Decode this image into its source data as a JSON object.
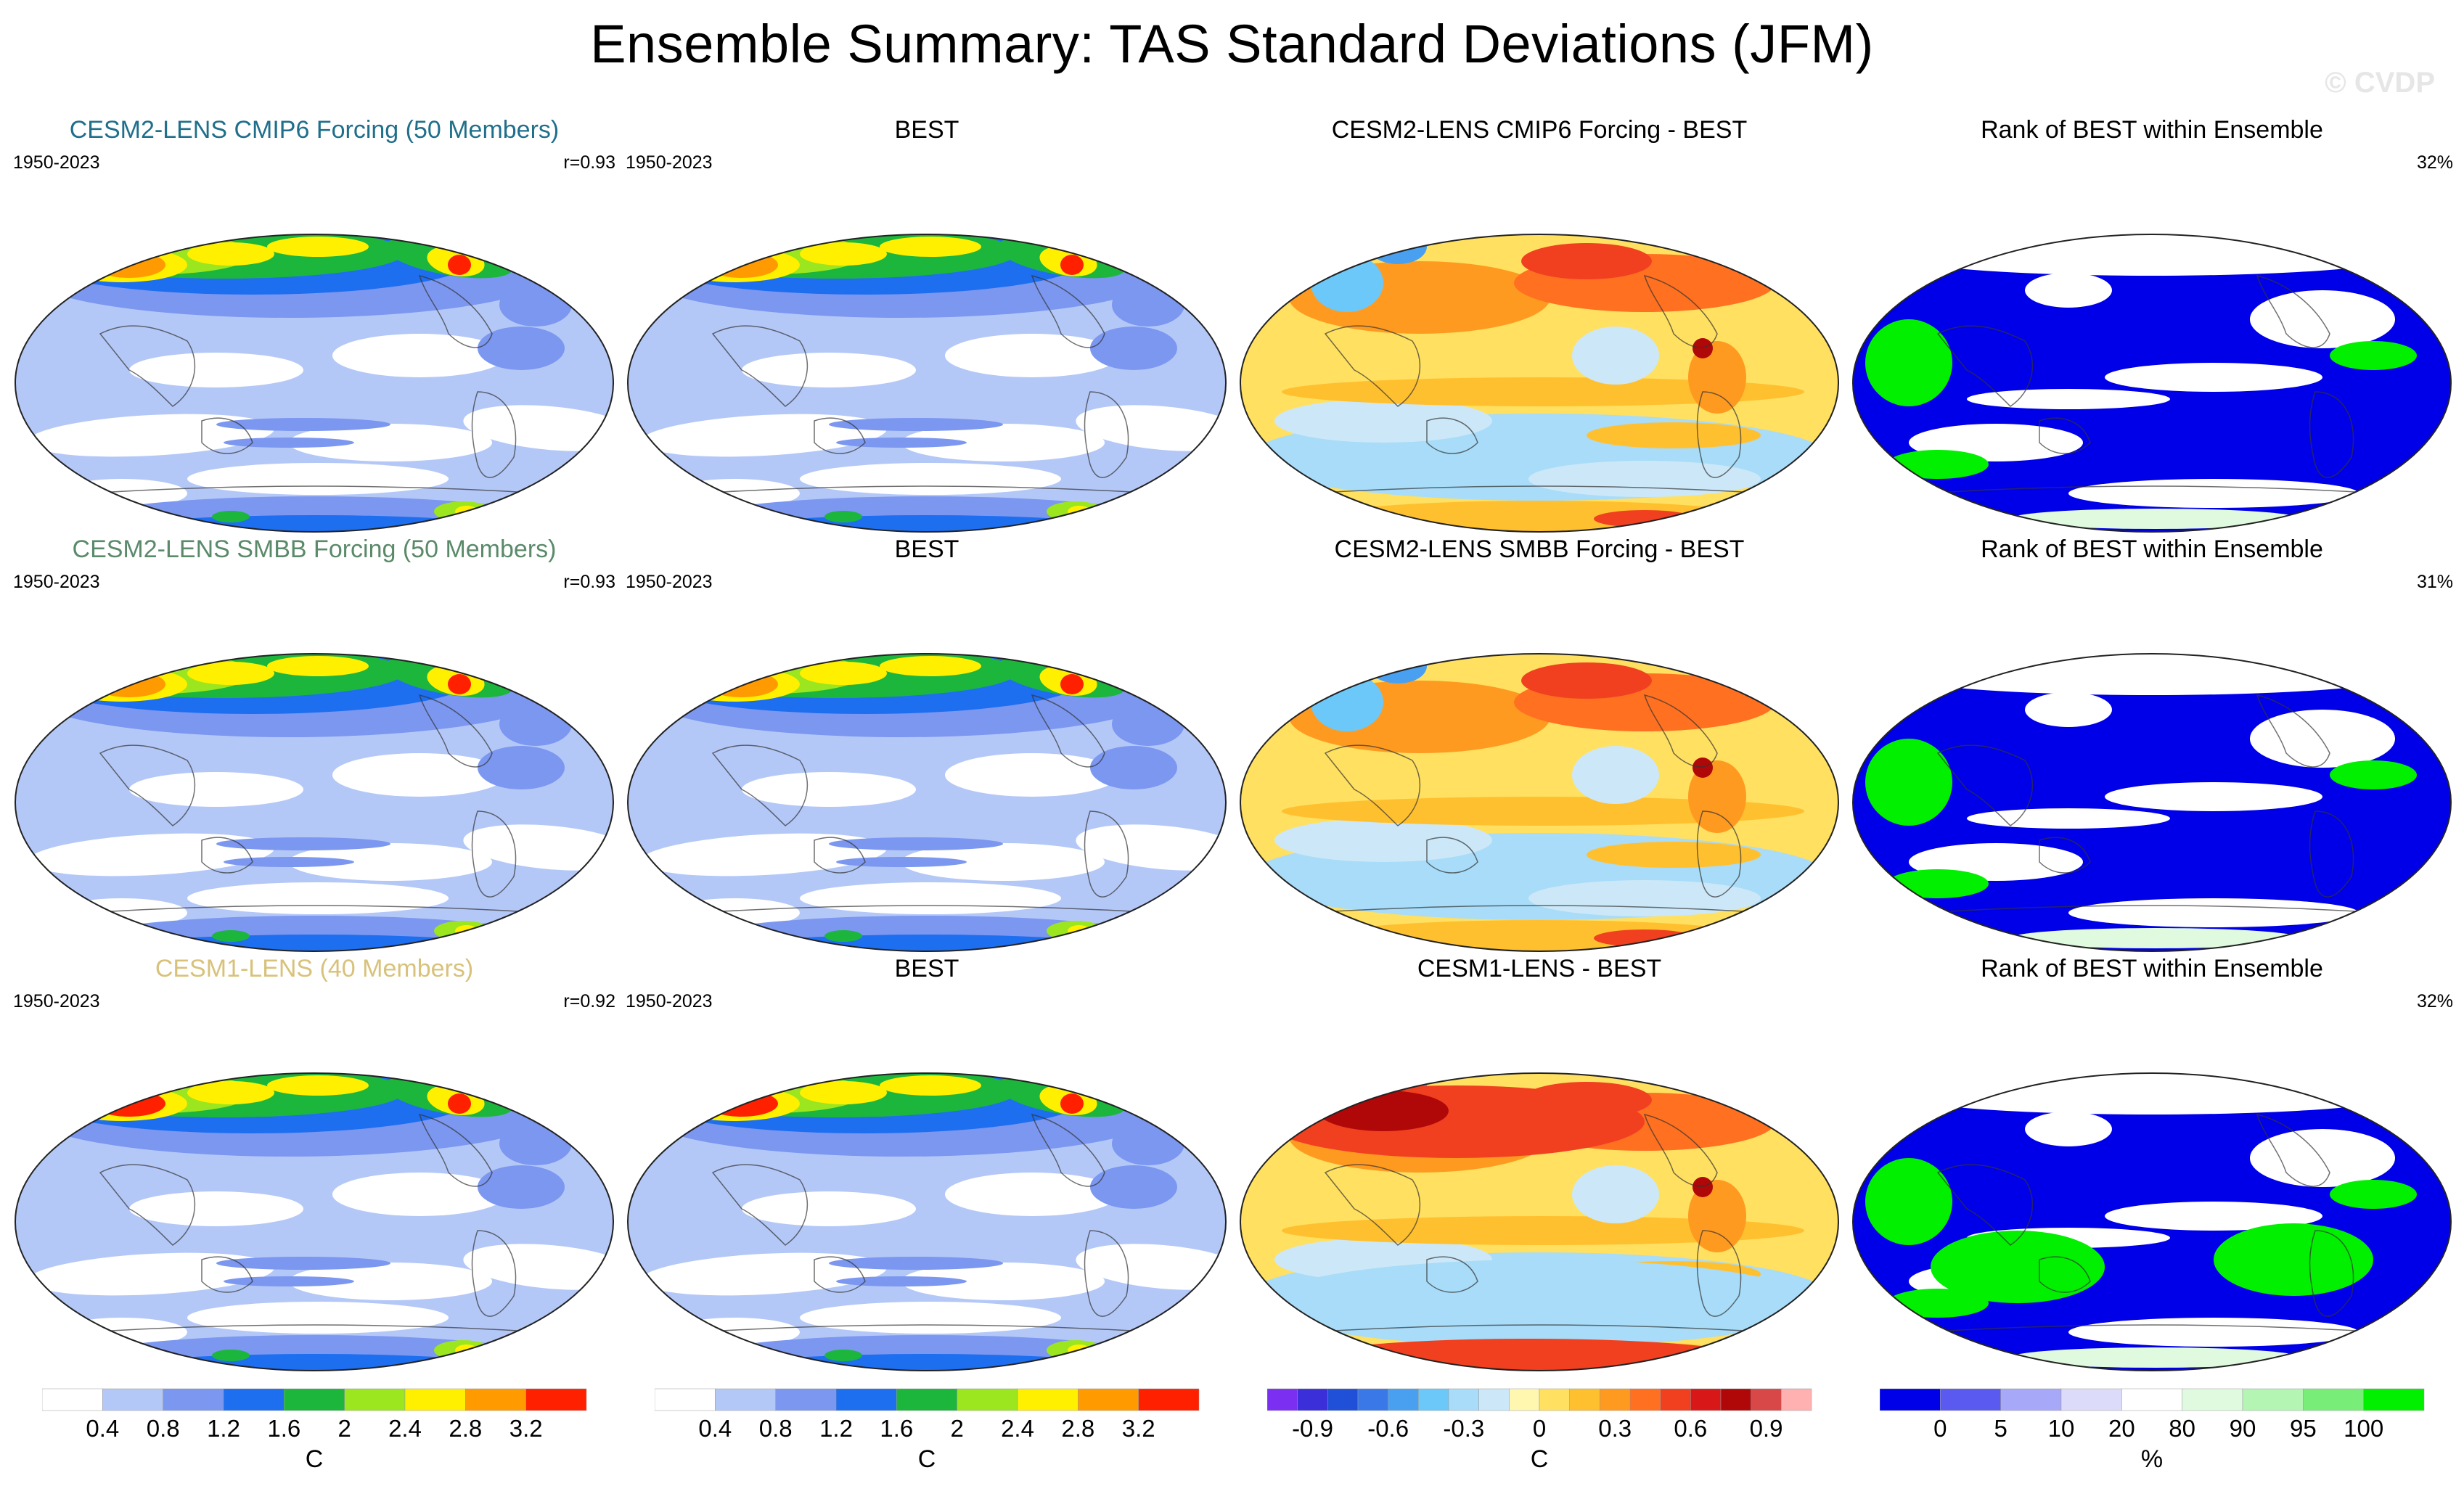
{
  "title": "Ensemble Summary: TAS Standard Deviations (JFM)",
  "watermark": "© CVDP",
  "colors": {
    "model1": "#1f6f8b",
    "model2": "#5a8a6a",
    "model3": "#d8c27a",
    "sd_scale": [
      "#ffffff",
      "#b4c8f8",
      "#7b97f0",
      "#1e6ef0",
      "#1cb63c",
      "#9be61e",
      "#fff000",
      "#ff9b00",
      "#ff2000"
    ],
    "diff_scale": [
      "#7b2ff0",
      "#3a2fd8",
      "#2050d8",
      "#3a78e8",
      "#4aa0f0",
      "#6cc8f8",
      "#a8dcf8",
      "#cce8f8",
      "#fff7b0",
      "#ffe060",
      "#ffc030",
      "#ff9a20",
      "#ff7020",
      "#f04020",
      "#d81818",
      "#b00808",
      "#d84848",
      "#ffb0b0"
    ],
    "rank_scale": [
      "#0000e8",
      "#5a5af0",
      "#a8a8f8",
      "#dcdcfa",
      "#ffffff",
      "#e0fae0",
      "#b4f5b4",
      "#78ee78",
      "#00f000"
    ]
  },
  "rows": [
    {
      "panels": [
        {
          "title": "CESM2-LENS CMIP6 Forcing (50 Members)",
          "years": "1950-2023",
          "r": "r=0.93",
          "kind": "sd"
        },
        {
          "title": "BEST",
          "years": "1950-2023",
          "r": "",
          "kind": "sd"
        },
        {
          "title": "CESM2-LENS CMIP6 Forcing - BEST",
          "years": "",
          "r": "",
          "kind": "diff"
        },
        {
          "title": "Rank of BEST within Ensemble",
          "years": "",
          "r": "32%",
          "kind": "rank"
        }
      ]
    },
    {
      "panels": [
        {
          "title": "CESM2-LENS SMBB Forcing (50 Members)",
          "years": "1950-2023",
          "r": "r=0.93",
          "kind": "sd"
        },
        {
          "title": "BEST",
          "years": "1950-2023",
          "r": "",
          "kind": "sd"
        },
        {
          "title": "CESM2-LENS SMBB Forcing - BEST",
          "years": "",
          "r": "",
          "kind": "diff"
        },
        {
          "title": "Rank of BEST within Ensemble",
          "years": "",
          "r": "31%",
          "kind": "rank"
        }
      ]
    },
    {
      "panels": [
        {
          "title": "CESM1-LENS (40 Members)",
          "years": "1950-2023",
          "r": "r=0.92",
          "kind": "sd"
        },
        {
          "title": "BEST",
          "years": "1950-2023",
          "r": "",
          "kind": "sd"
        },
        {
          "title": "CESM1-LENS - BEST",
          "years": "",
          "r": "",
          "kind": "diff"
        },
        {
          "title": "Rank of BEST within Ensemble",
          "years": "",
          "r": "32%",
          "kind": "rank"
        }
      ]
    }
  ],
  "colorbars": [
    {
      "ticks": [
        "0.4",
        "0.8",
        "1.2",
        "1.6",
        "2",
        "2.4",
        "2.8",
        "3.2"
      ],
      "unit": "C"
    },
    {
      "ticks": [
        "0.4",
        "0.8",
        "1.2",
        "1.6",
        "2",
        "2.4",
        "2.8",
        "3.2"
      ],
      "unit": "C"
    },
    {
      "ticks": [
        "-0.9",
        "-0.6",
        "-0.3",
        "0",
        "0.3",
        "0.6",
        "0.9"
      ],
      "unit": "C"
    },
    {
      "ticks": [
        "0",
        "5",
        "10",
        "20",
        "80",
        "90",
        "95",
        "100"
      ],
      "unit": "%"
    }
  ]
}
